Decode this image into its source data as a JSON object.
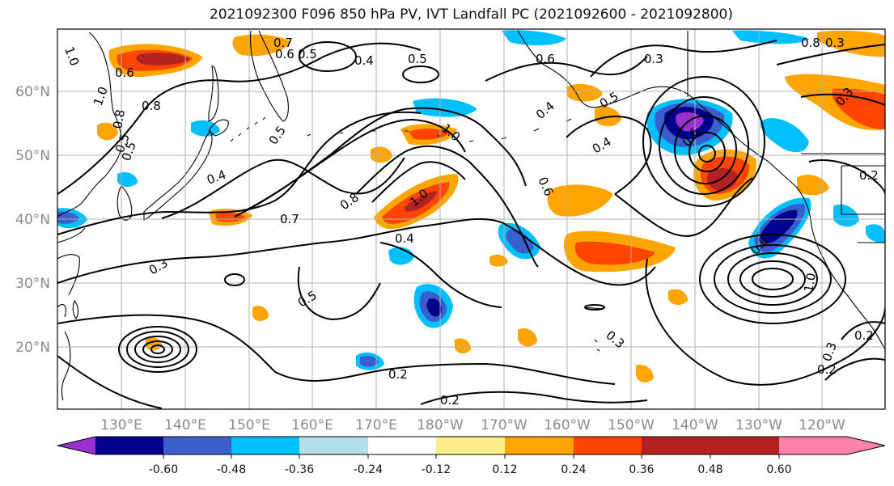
{
  "title": "2021092300 F096 850 hPa PV, IVT Landfall PC (2021092600 - 2021092800)",
  "lat_labels": [
    "60°N",
    "50°N",
    "40°N",
    "30°N",
    "20°N"
  ],
  "lon_labels": [
    "130°E",
    "140°E",
    "150°E",
    "160°E",
    "170°E",
    "180°W",
    "170°W",
    "160°W",
    "150°W",
    "140°W",
    "130°W",
    "120°W"
  ],
  "colorbar": {
    "colors": [
      "#9932cc",
      "#00008b",
      "#3a5fcd",
      "#00bfff",
      "#b2dfee",
      "#ffffff",
      "#ffec8b",
      "#ffa500",
      "#ff4500",
      "#b22222",
      "#ff82ab"
    ],
    "tick_labels": [
      "-0.60",
      "-0.48",
      "-0.36",
      "-0.24",
      "-0.12",
      "0.12",
      "0.24",
      "0.36",
      "0.48",
      "0.60"
    ]
  },
  "contour_labels": [
    {
      "text": "1.0"
    },
    {
      "text": "0.6"
    },
    {
      "text": "0.7"
    },
    {
      "text": "0.6"
    },
    {
      "text": "0.5"
    },
    {
      "text": "0.4"
    },
    {
      "text": "0.5"
    },
    {
      "text": "0.6"
    },
    {
      "text": "0.3"
    },
    {
      "text": "0.8"
    },
    {
      "text": "1.0"
    },
    {
      "text": "0.8"
    },
    {
      "text": "0.5"
    },
    {
      "text": "0.4"
    },
    {
      "text": "0.7"
    },
    {
      "text": "0.8"
    },
    {
      "text": "1.0"
    },
    {
      "text": "1.0"
    },
    {
      "text": "0.6"
    },
    {
      "text": "0.4"
    },
    {
      "text": "0.4"
    },
    {
      "text": "0.5"
    },
    {
      "text": "0.6"
    },
    {
      "text": "0.4"
    },
    {
      "text": "0.2"
    },
    {
      "text": "0.3"
    },
    {
      "text": "0.5"
    },
    {
      "text": "0.3"
    },
    {
      "text": "0.6"
    },
    {
      "text": "1.0"
    },
    {
      "text": "0.3"
    },
    {
      "text": "0.2"
    },
    {
      "text": "0.3"
    },
    {
      "text": "0.2"
    },
    {
      "text": "0.2"
    },
    {
      "text": "0.2"
    },
    {
      "text": "0.5"
    },
    {
      "text": "0.5"
    },
    {
      "text": "0.8"
    },
    {
      "text": "0.3"
    }
  ]
}
